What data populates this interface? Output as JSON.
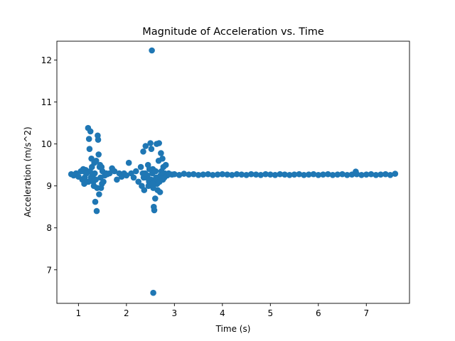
{
  "chart_data": {
    "type": "scatter",
    "title": "Magnitude of Acceleration vs. Time",
    "xlabel": "Time (s)",
    "ylabel": "Acceleration (m/s^2)",
    "xlim": [
      0.55,
      7.9
    ],
    "ylim": [
      6.2,
      12.45
    ],
    "xticks": [
      "1",
      "2",
      "3",
      "4",
      "5",
      "6",
      "7"
    ],
    "yticks": [
      "7",
      "8",
      "9",
      "10",
      "11",
      "12"
    ],
    "grid": false,
    "legend": "none",
    "color": "#1f77b4",
    "series": [
      {
        "x": [
          0.85,
          0.9,
          0.95,
          1.0,
          1.05,
          1.08,
          1.1,
          1.12,
          1.15,
          1.17,
          1.2,
          1.22,
          1.23,
          1.25,
          1.27,
          1.28,
          1.3,
          1.32,
          1.33,
          1.35,
          1.37,
          1.38,
          1.4,
          1.41,
          1.42,
          1.43,
          1.45,
          1.46,
          1.47,
          1.48,
          1.5,
          1.52,
          1.55,
          1.58,
          1.6,
          1.65,
          1.7,
          1.75,
          1.8,
          1.85,
          1.9,
          1.95,
          2.0,
          2.05,
          2.1,
          2.15,
          2.2,
          2.25,
          2.3,
          2.32,
          2.35,
          2.37,
          2.4,
          2.42,
          2.45,
          2.47,
          2.5,
          2.52,
          2.53,
          2.55,
          2.56,
          2.57,
          2.58,
          2.6,
          2.62,
          2.63,
          2.65,
          2.67,
          2.68,
          2.7,
          2.72,
          2.73,
          2.75,
          2.77,
          2.8,
          2.82,
          2.85,
          2.88,
          2.9,
          2.95,
          3.0,
          3.1,
          3.2,
          3.3,
          3.4,
          3.5,
          3.6,
          3.7,
          3.8,
          3.9,
          4.0,
          4.1,
          4.2,
          4.3,
          4.4,
          4.5,
          4.6,
          4.7,
          4.8,
          4.9,
          5.0,
          5.1,
          5.2,
          5.3,
          5.4,
          5.5,
          5.6,
          5.7,
          5.8,
          5.9,
          6.0,
          6.1,
          6.2,
          6.3,
          6.4,
          6.5,
          6.6,
          6.7,
          6.78,
          6.8,
          6.9,
          7.0,
          7.1,
          7.2,
          7.3,
          7.4,
          7.5,
          7.6,
          1.21,
          1.24,
          1.26,
          1.34,
          1.36,
          1.39,
          1.44,
          1.49,
          1.13,
          1.18,
          2.34,
          2.44,
          2.46,
          2.51,
          2.54,
          2.59,
          2.61,
          2.64,
          2.66,
          2.69,
          2.71,
          2.74,
          2.76,
          2.79,
          1.11,
          1.16,
          1.29,
          1.31,
          2.36,
          2.39,
          2.48,
          2.49,
          2.55,
          2.56
        ],
        "y": [
          9.28,
          9.25,
          9.3,
          9.22,
          9.35,
          9.15,
          9.4,
          9.05,
          9.38,
          9.3,
          10.38,
          10.12,
          9.88,
          10.3,
          9.65,
          9.45,
          9.2,
          9.0,
          9.55,
          8.62,
          9.6,
          8.4,
          10.2,
          10.1,
          9.75,
          8.8,
          9.5,
          9.2,
          8.95,
          9.45,
          9.35,
          9.1,
          9.25,
          9.3,
          9.28,
          9.3,
          9.42,
          9.35,
          9.15,
          9.3,
          9.22,
          9.3,
          9.25,
          9.55,
          9.3,
          9.2,
          9.35,
          9.1,
          9.45,
          9.0,
          9.82,
          8.9,
          9.95,
          9.2,
          9.5,
          9.1,
          10.02,
          9.88,
          12.23,
          9.4,
          6.45,
          8.5,
          8.42,
          8.7,
          9.2,
          10.0,
          8.9,
          9.6,
          10.02,
          8.85,
          9.78,
          9.35,
          9.65,
          9.45,
          9.3,
          9.5,
          9.25,
          9.3,
          9.28,
          9.27,
          9.28,
          9.26,
          9.29,
          9.27,
          9.28,
          9.26,
          9.27,
          9.28,
          9.26,
          9.27,
          9.28,
          9.27,
          9.26,
          9.28,
          9.27,
          9.26,
          9.28,
          9.27,
          9.26,
          9.28,
          9.27,
          9.26,
          9.28,
          9.27,
          9.26,
          9.27,
          9.28,
          9.26,
          9.27,
          9.28,
          9.26,
          9.27,
          9.28,
          9.26,
          9.27,
          9.28,
          9.26,
          9.27,
          9.34,
          9.28,
          9.26,
          9.27,
          9.28,
          9.26,
          9.27,
          9.28,
          9.26,
          9.29,
          9.1,
          9.35,
          9.2,
          9.3,
          9.15,
          8.95,
          9.45,
          9.05,
          9.2,
          9.1,
          9.3,
          9.25,
          9.0,
          9.15,
          9.3,
          9.1,
          9.35,
          9.05,
          9.2,
          9.1,
          9.25,
          9.3,
          9.15,
          9.2,
          9.35,
          9.3,
          9.25,
          9.1,
          9.2,
          9.3,
          9.4,
          9.15,
          9.05,
          8.95
        ]
      }
    ]
  }
}
